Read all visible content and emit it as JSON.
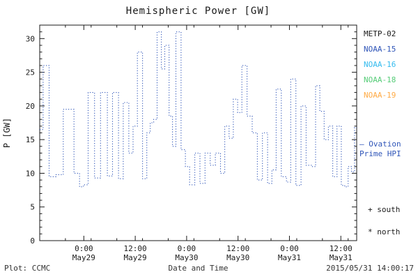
{
  "title": "Hemispheric Power [GW]",
  "legend": {
    "satellites": [
      {
        "label": "METP-02",
        "color": "#1a1a1a"
      },
      {
        "label": "NOAA-15",
        "color": "#2f55b8"
      },
      {
        "label": "NOAA-16",
        "color": "#33bbee"
      },
      {
        "label": "NOAA-18",
        "color": "#55cc77"
      },
      {
        "label": "NOAA-19",
        "color": "#ffaa44"
      }
    ],
    "ovation_line1": "– Ovation",
    "ovation_line2": "Prime HPI",
    "ovation_color": "#2f55b8",
    "south_label": "+ south",
    "north_label": "* north"
  },
  "footer": {
    "left": "Plot: CCMC",
    "right": "2015/05/31 14:00:17"
  },
  "chart_data": {
    "type": "line",
    "title": "Hemispheric Power [GW]",
    "xlabel": "Date and Time",
    "ylabel": "P [GW]",
    "ylim": [
      0,
      32
    ],
    "y_ticks": [
      0,
      5,
      10,
      15,
      20,
      25,
      30
    ],
    "x_range_hours": [
      0,
      74
    ],
    "x_ticks": [
      {
        "hour": 10.3,
        "time": "0:00",
        "date": "May29"
      },
      {
        "hour": 22.3,
        "time": "12:00",
        "date": "May29"
      },
      {
        "hour": 34.3,
        "time": "0:00",
        "date": "May30"
      },
      {
        "hour": 46.3,
        "time": "12:00",
        "date": "May30"
      },
      {
        "hour": 58.3,
        "time": "0:00",
        "date": "May31"
      },
      {
        "hour": 70.3,
        "time": "12:00",
        "date": "May31"
      }
    ],
    "grid": false,
    "line_style": "dotted-step",
    "line_color": "#2f55b8",
    "legend_position": "right",
    "series": [
      {
        "name": "Ovation Prime HPI",
        "points": [
          [
            0.0,
            16.5
          ],
          [
            0.8,
            26.0
          ],
          [
            2.2,
            9.5
          ],
          [
            3.8,
            9.8
          ],
          [
            5.5,
            19.5
          ],
          [
            8.0,
            10.0
          ],
          [
            9.3,
            8.0
          ],
          [
            10.2,
            8.3
          ],
          [
            11.3,
            22.0
          ],
          [
            12.8,
            9.3
          ],
          [
            14.2,
            22.0
          ],
          [
            15.8,
            9.6
          ],
          [
            17.0,
            22.0
          ],
          [
            18.4,
            9.2
          ],
          [
            19.5,
            20.5
          ],
          [
            20.8,
            13.0
          ],
          [
            21.8,
            17.0
          ],
          [
            22.8,
            28.0
          ],
          [
            24.0,
            9.2
          ],
          [
            25.0,
            16.0
          ],
          [
            25.8,
            17.5
          ],
          [
            26.6,
            18.0
          ],
          [
            27.4,
            31.0
          ],
          [
            28.4,
            25.5
          ],
          [
            29.2,
            29.0
          ],
          [
            30.2,
            18.5
          ],
          [
            31.0,
            14.0
          ],
          [
            31.8,
            31.0
          ],
          [
            33.0,
            13.5
          ],
          [
            34.0,
            11.0
          ],
          [
            35.0,
            8.3
          ],
          [
            36.2,
            13.0
          ],
          [
            37.4,
            8.5
          ],
          [
            38.6,
            13.0
          ],
          [
            39.8,
            11.2
          ],
          [
            41.0,
            13.0
          ],
          [
            42.2,
            10.0
          ],
          [
            43.2,
            17.0
          ],
          [
            44.2,
            15.2
          ],
          [
            45.2,
            21.0
          ],
          [
            46.2,
            19.0
          ],
          [
            47.2,
            26.0
          ],
          [
            48.4,
            18.5
          ],
          [
            49.6,
            16.0
          ],
          [
            50.8,
            9.0
          ],
          [
            52.0,
            16.0
          ],
          [
            53.2,
            8.5
          ],
          [
            54.2,
            10.5
          ],
          [
            55.2,
            22.5
          ],
          [
            56.4,
            9.5
          ],
          [
            57.6,
            8.7
          ],
          [
            58.6,
            24.0
          ],
          [
            59.8,
            8.2
          ],
          [
            61.0,
            20.0
          ],
          [
            62.2,
            11.2
          ],
          [
            63.4,
            11.0
          ],
          [
            64.4,
            23.0
          ],
          [
            65.4,
            19.2
          ],
          [
            66.4,
            15.0
          ],
          [
            67.4,
            17.0
          ],
          [
            68.4,
            9.5
          ],
          [
            69.4,
            17.0
          ],
          [
            70.4,
            8.2
          ],
          [
            71.2,
            8.0
          ],
          [
            72.0,
            11.0
          ],
          [
            72.8,
            10.2
          ],
          [
            73.5,
            16.8
          ]
        ]
      }
    ]
  }
}
